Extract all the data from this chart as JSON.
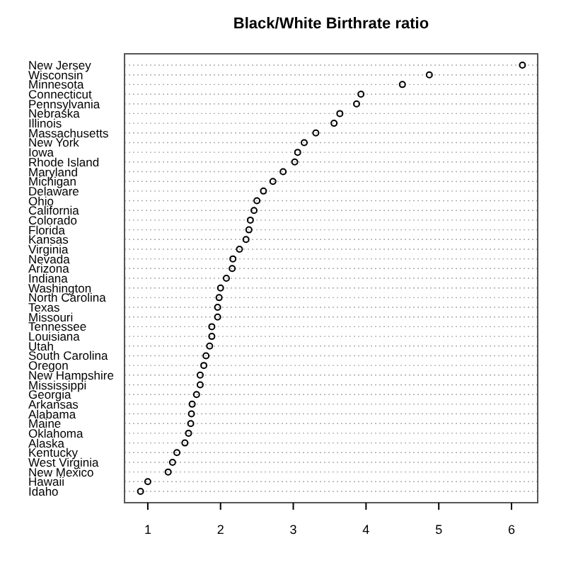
{
  "chart_data": {
    "type": "scatter",
    "orientation": "horizontal",
    "title": "Black/White Birthrate ratio",
    "categories": [
      "New Jersey",
      "Wisconsin",
      "Minnesota",
      "Connecticut",
      "Pennsylvania",
      "Nebraska",
      "Illinois",
      "Massachusetts",
      "New York",
      "Iowa",
      "Rhode Island",
      "Maryland",
      "Michigan",
      "Delaware",
      "Ohio",
      "California",
      "Colorado",
      "Florida",
      "Kansas",
      "Virginia",
      "Nevada",
      "Arizona",
      "Indiana",
      "Washington",
      "North Carolina",
      "Texas",
      "Missouri",
      "Tennessee",
      "Louisiana",
      "Utah",
      "South Carolina",
      "Oregon",
      "New Hampshire",
      "Mississippi",
      "Georgia",
      "Arkansas",
      "Alabama",
      "Maine",
      "Oklahoma",
      "Alaska",
      "Kentucky",
      "West Virginia",
      "New Mexico",
      "Hawaii",
      "Idaho"
    ],
    "values": [
      6.15,
      4.87,
      4.5,
      3.93,
      3.87,
      3.64,
      3.56,
      3.31,
      3.15,
      3.06,
      3.02,
      2.86,
      2.72,
      2.59,
      2.5,
      2.46,
      2.41,
      2.39,
      2.35,
      2.26,
      2.17,
      2.16,
      2.08,
      2.0,
      1.98,
      1.96,
      1.96,
      1.88,
      1.88,
      1.85,
      1.8,
      1.77,
      1.72,
      1.72,
      1.67,
      1.61,
      1.6,
      1.59,
      1.56,
      1.51,
      1.4,
      1.34,
      1.28,
      1.0,
      0.9
    ],
    "color": "#000000",
    "marker": "circle",
    "grid": "y",
    "xlim": [
      0.68,
      6.36
    ],
    "xticks": [
      1,
      2,
      3,
      4,
      5,
      6
    ]
  }
}
